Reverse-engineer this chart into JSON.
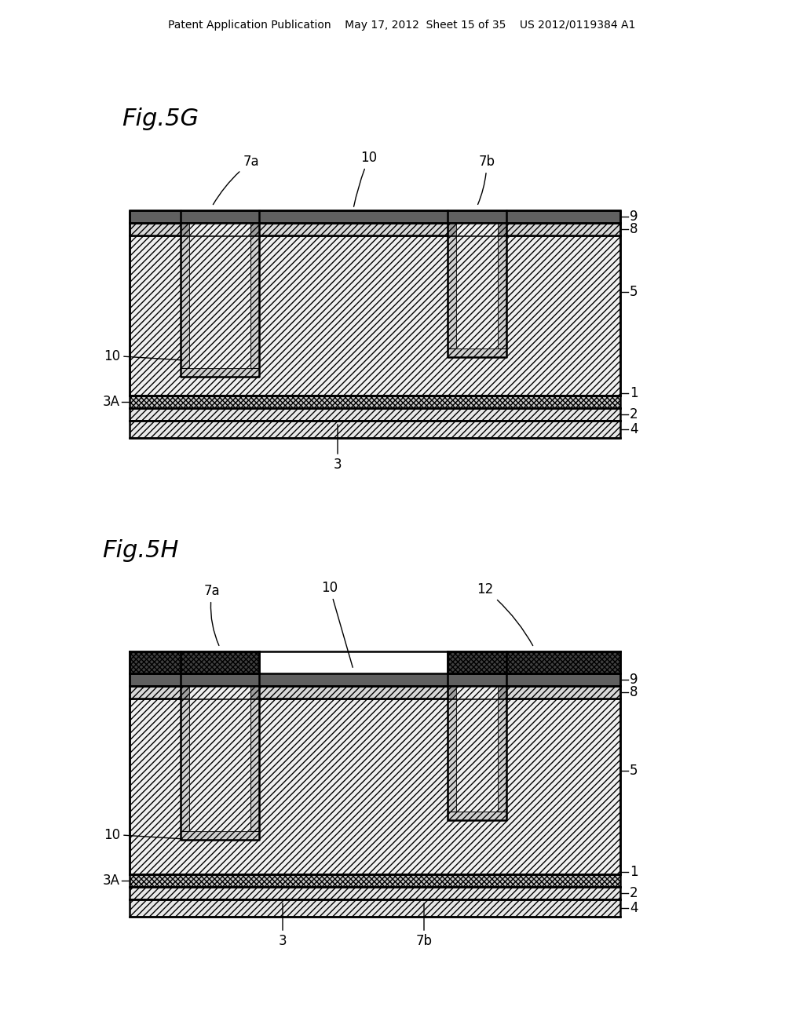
{
  "bg_color": "#ffffff",
  "header_text": "Patent Application Publication    May 17, 2012  Sheet 15 of 35    US 2012/0119384 A1",
  "fig5g_title": "Fig.5G",
  "fig5h_title": "Fig.5H"
}
